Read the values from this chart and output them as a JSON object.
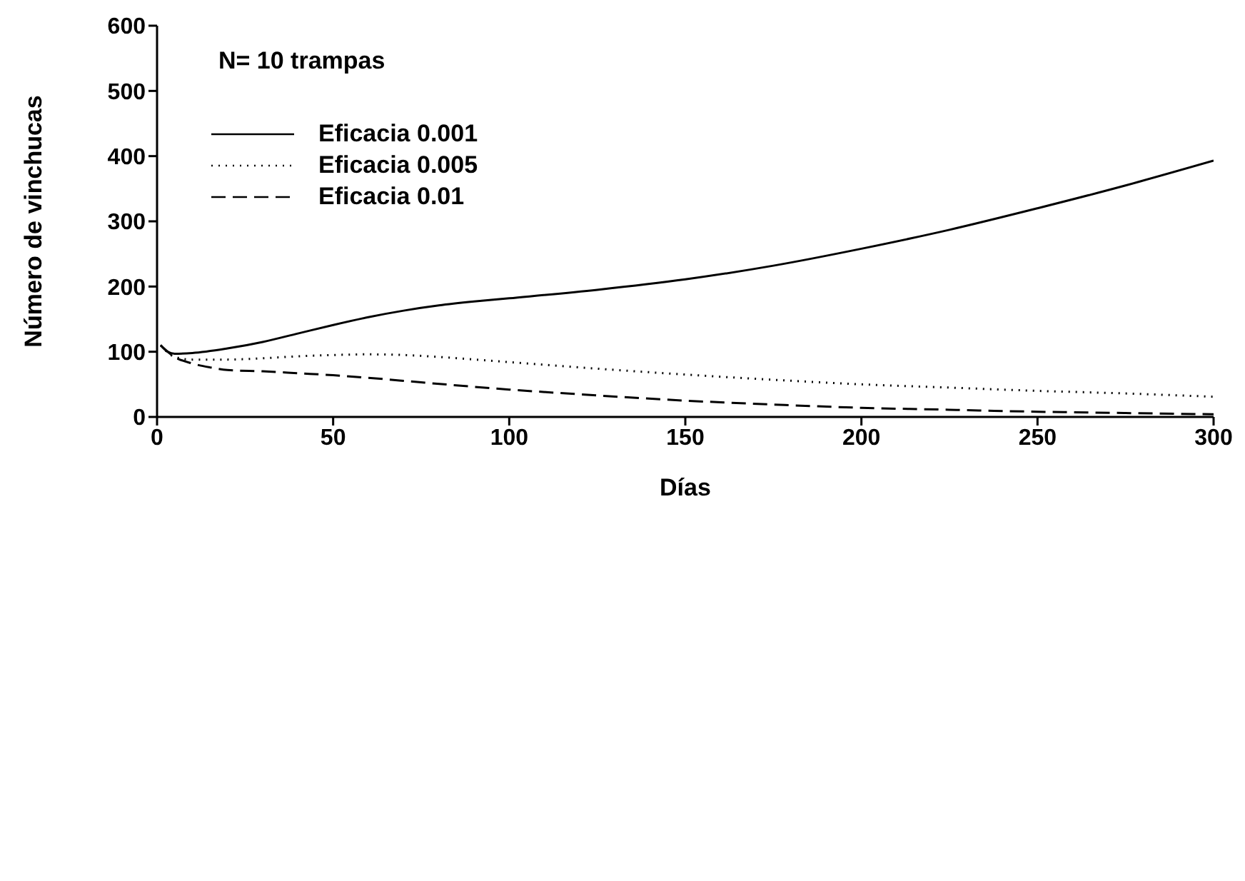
{
  "chart_data": {
    "type": "line",
    "xlabel": "Días",
    "ylabel": "Número de vinchucas",
    "annotations": [
      "N= 10 trampas"
    ],
    "xlim": [
      0,
      300
    ],
    "xticks": [
      0,
      50,
      100,
      150,
      200,
      250,
      300
    ],
    "ylim": [
      0,
      600
    ],
    "yticks": [
      0,
      100,
      200,
      300,
      400,
      500,
      600
    ],
    "grid": false,
    "legend": "top left",
    "marker": "none",
    "series": [
      {
        "name": "Eficacia 0.001",
        "color": "#000000",
        "line_style": "solid",
        "x": [
          1,
          3,
          5,
          10,
          20,
          30,
          40,
          50,
          60,
          70,
          80,
          90,
          100,
          125,
          150,
          175,
          200,
          225,
          250,
          275,
          300
        ],
        "values": [
          110,
          100,
          97,
          98,
          105,
          115,
          128,
          141,
          153,
          163,
          171,
          177,
          182,
          195,
          211,
          232,
          258,
          287,
          320,
          355,
          393
        ]
      },
      {
        "name": "Eficacia 0.005",
        "color": "#000000",
        "line_style": "dotted",
        "x": [
          1,
          5,
          10,
          20,
          30,
          40,
          50,
          60,
          70,
          80,
          100,
          125,
          150,
          175,
          200,
          225,
          250,
          275,
          300
        ],
        "values": [
          110,
          92,
          88,
          88,
          90,
          93,
          95,
          96,
          95,
          92,
          84,
          74,
          65,
          57,
          50,
          45,
          40,
          36,
          31
        ]
      },
      {
        "name": "Eficacia 0.01",
        "color": "#000000",
        "line_style": "dashed",
        "x": [
          1,
          5,
          10,
          15,
          20,
          30,
          40,
          50,
          60,
          75,
          100,
          125,
          150,
          175,
          200,
          225,
          250,
          275,
          300
        ],
        "values": [
          110,
          92,
          82,
          76,
          72,
          70,
          67,
          64,
          60,
          53,
          42,
          33,
          25,
          19,
          14,
          11,
          8,
          6,
          4
        ]
      }
    ]
  }
}
